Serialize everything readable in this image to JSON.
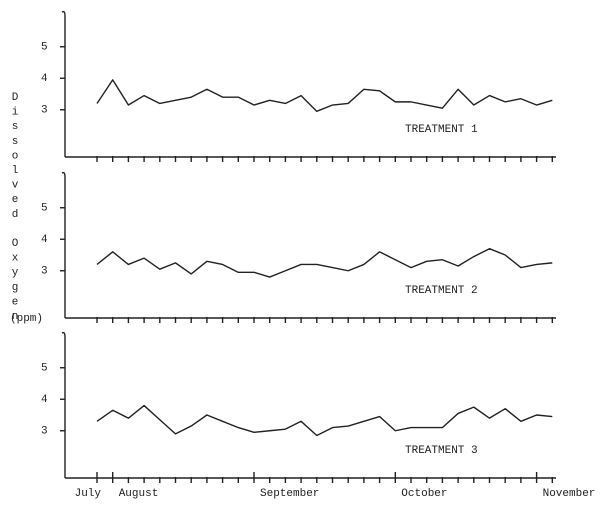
{
  "y_label": "Dissolved Oxygen",
  "y_unit": "(ppm)",
  "chart_data": [
    {
      "type": "line",
      "annotation": "TREATMENT 1",
      "color": "#222222",
      "categories": [
        null,
        null,
        null,
        null,
        null,
        null,
        null,
        null,
        null,
        null,
        null,
        null,
        null,
        null,
        null,
        null,
        null,
        null,
        null,
        null,
        null,
        null,
        null,
        null,
        null,
        null,
        null,
        null,
        null,
        null
      ],
      "values": [
        3.2,
        3.95,
        3.15,
        3.45,
        3.2,
        3.3,
        3.4,
        3.65,
        3.4,
        3.4,
        3.15,
        3.3,
        3.2,
        3.45,
        2.95,
        3.15,
        3.2,
        3.65,
        3.6,
        3.25,
        3.25,
        3.15,
        3.05,
        3.65,
        3.15,
        3.45,
        3.25,
        3.35,
        3.15,
        3.3
      ],
      "ylim": [
        1.5,
        6.1
      ],
      "yticks": [
        3,
        4,
        5
      ]
    },
    {
      "type": "line",
      "annotation": "TREATMENT 2",
      "color": "#222222",
      "categories": [
        null,
        null,
        null,
        null,
        null,
        null,
        null,
        null,
        null,
        null,
        null,
        null,
        null,
        null,
        null,
        null,
        null,
        null,
        null,
        null,
        null,
        null,
        null,
        null,
        null,
        null,
        null,
        null,
        null,
        null
      ],
      "values": [
        3.2,
        3.6,
        3.2,
        3.4,
        3.05,
        3.25,
        2.9,
        3.3,
        3.2,
        2.95,
        2.95,
        2.8,
        3.0,
        3.2,
        3.2,
        3.1,
        3.0,
        3.2,
        3.6,
        3.35,
        3.1,
        3.3,
        3.35,
        3.15,
        3.45,
        3.7,
        3.5,
        3.1,
        3.2,
        3.25
      ],
      "ylim": [
        1.5,
        6.1
      ],
      "yticks": [
        3,
        4,
        5
      ]
    },
    {
      "type": "line",
      "annotation": "TREATMENT 3",
      "color": "#222222",
      "categories": [
        "July",
        "August",
        null,
        null,
        null,
        null,
        null,
        null,
        null,
        null,
        "September",
        null,
        null,
        null,
        null,
        null,
        null,
        null,
        null,
        "October",
        null,
        null,
        null,
        null,
        null,
        null,
        null,
        null,
        "November",
        null
      ],
      "values": [
        3.3,
        3.65,
        3.4,
        3.8,
        3.35,
        2.9,
        3.15,
        3.5,
        3.3,
        3.1,
        2.95,
        3.0,
        3.05,
        3.3,
        2.85,
        3.1,
        3.15,
        3.3,
        3.45,
        3.0,
        3.1,
        3.1,
        3.1,
        3.55,
        3.75,
        3.4,
        3.7,
        3.3,
        3.5,
        3.45
      ],
      "ylim": [
        1.5,
        6.1
      ],
      "yticks": [
        3,
        4,
        5
      ]
    }
  ]
}
